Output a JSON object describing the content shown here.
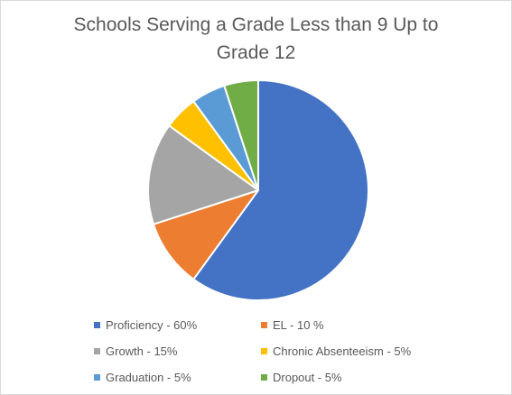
{
  "chart_data": {
    "type": "pie",
    "title_lines": [
      "Schools Serving a Grade Less than 9 Up to",
      "Grade 12"
    ],
    "slices": [
      {
        "label": "Proficiency - 60%",
        "value": 60,
        "color": "#4472C4"
      },
      {
        "label": "EL - 10 %",
        "value": 10,
        "color": "#ED7D31"
      },
      {
        "label": "Growth - 15%",
        "value": 15,
        "color": "#A5A5A5"
      },
      {
        "label": "Chronic Absenteeism - 5%",
        "value": 5,
        "color": "#FFC000"
      },
      {
        "label": "Graduation - 5%",
        "value": 5,
        "color": "#5B9BD5"
      },
      {
        "label": "Dropout - 5%",
        "value": 5,
        "color": "#70AD47"
      }
    ],
    "legend_position": "bottom"
  }
}
